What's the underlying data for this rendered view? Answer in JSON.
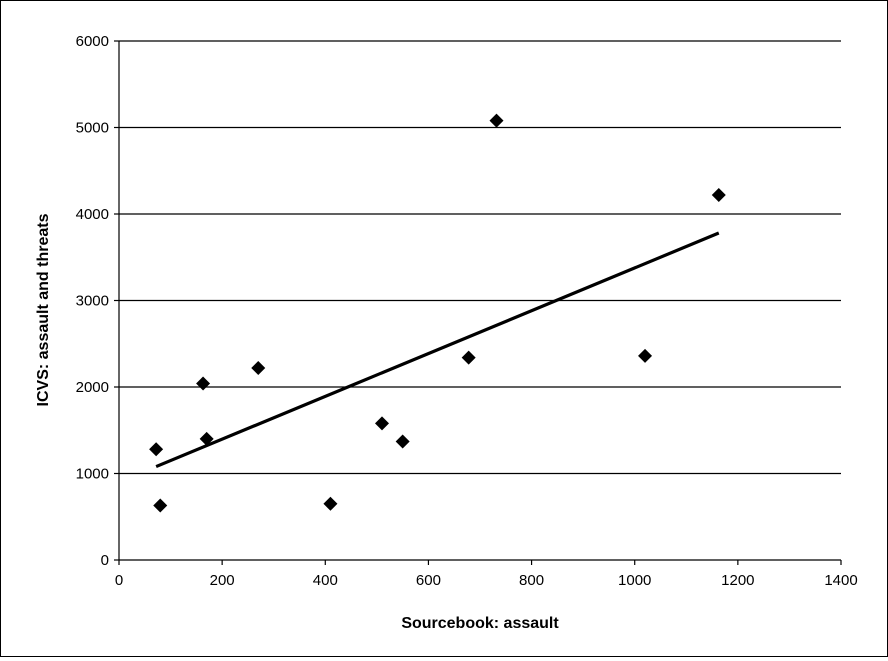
{
  "chart_data": {
    "type": "scatter",
    "xlabel": "Sourcebook: assault",
    "ylabel": "ICVS: assault and threats",
    "xlim": [
      0,
      1400
    ],
    "ylim": [
      0,
      6000
    ],
    "x_ticks": [
      0,
      200,
      400,
      600,
      800,
      1000,
      1200,
      1400
    ],
    "y_ticks": [
      0,
      1000,
      2000,
      3000,
      4000,
      5000,
      6000
    ],
    "horizontal_gridlines": true,
    "legend": "none",
    "marker": "diamond",
    "marker_color": "#000000",
    "series": [
      {
        "points": [
          {
            "x": 72,
            "y": 1280
          },
          {
            "x": 80,
            "y": 630
          },
          {
            "x": 163,
            "y": 2040
          },
          {
            "x": 170,
            "y": 1400
          },
          {
            "x": 270,
            "y": 2220
          },
          {
            "x": 410,
            "y": 650
          },
          {
            "x": 510,
            "y": 1580
          },
          {
            "x": 550,
            "y": 1370
          },
          {
            "x": 678,
            "y": 2340
          },
          {
            "x": 732,
            "y": 5080
          },
          {
            "x": 1020,
            "y": 2360
          },
          {
            "x": 1163,
            "y": 4220
          }
        ]
      }
    ],
    "trendline": {
      "type": "linear",
      "start": {
        "x": 72,
        "y": 1080
      },
      "end": {
        "x": 1163,
        "y": 3780
      }
    }
  }
}
